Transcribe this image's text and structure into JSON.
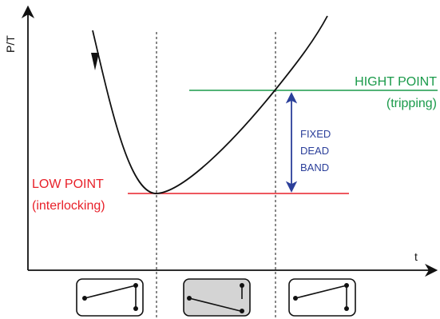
{
  "axes": {
    "y_label": "P/T",
    "x_label": "t"
  },
  "high_point": {
    "label": "HIGHT POINT",
    "sublabel": "(tripping)",
    "color": "#1a9a4a"
  },
  "low_point": {
    "label": "LOW POINT",
    "sublabel": "(interlocking)",
    "color": "#e8212a"
  },
  "dead_band": {
    "lines": [
      "FIXED",
      "DEAD",
      "BAND"
    ],
    "color": "#2b3f9a"
  },
  "curve_color": "#111111",
  "switch_states": [
    {
      "state": "closed",
      "shaded": false
    },
    {
      "state": "open",
      "shaded": true
    },
    {
      "state": "closed",
      "shaded": false
    }
  ]
}
